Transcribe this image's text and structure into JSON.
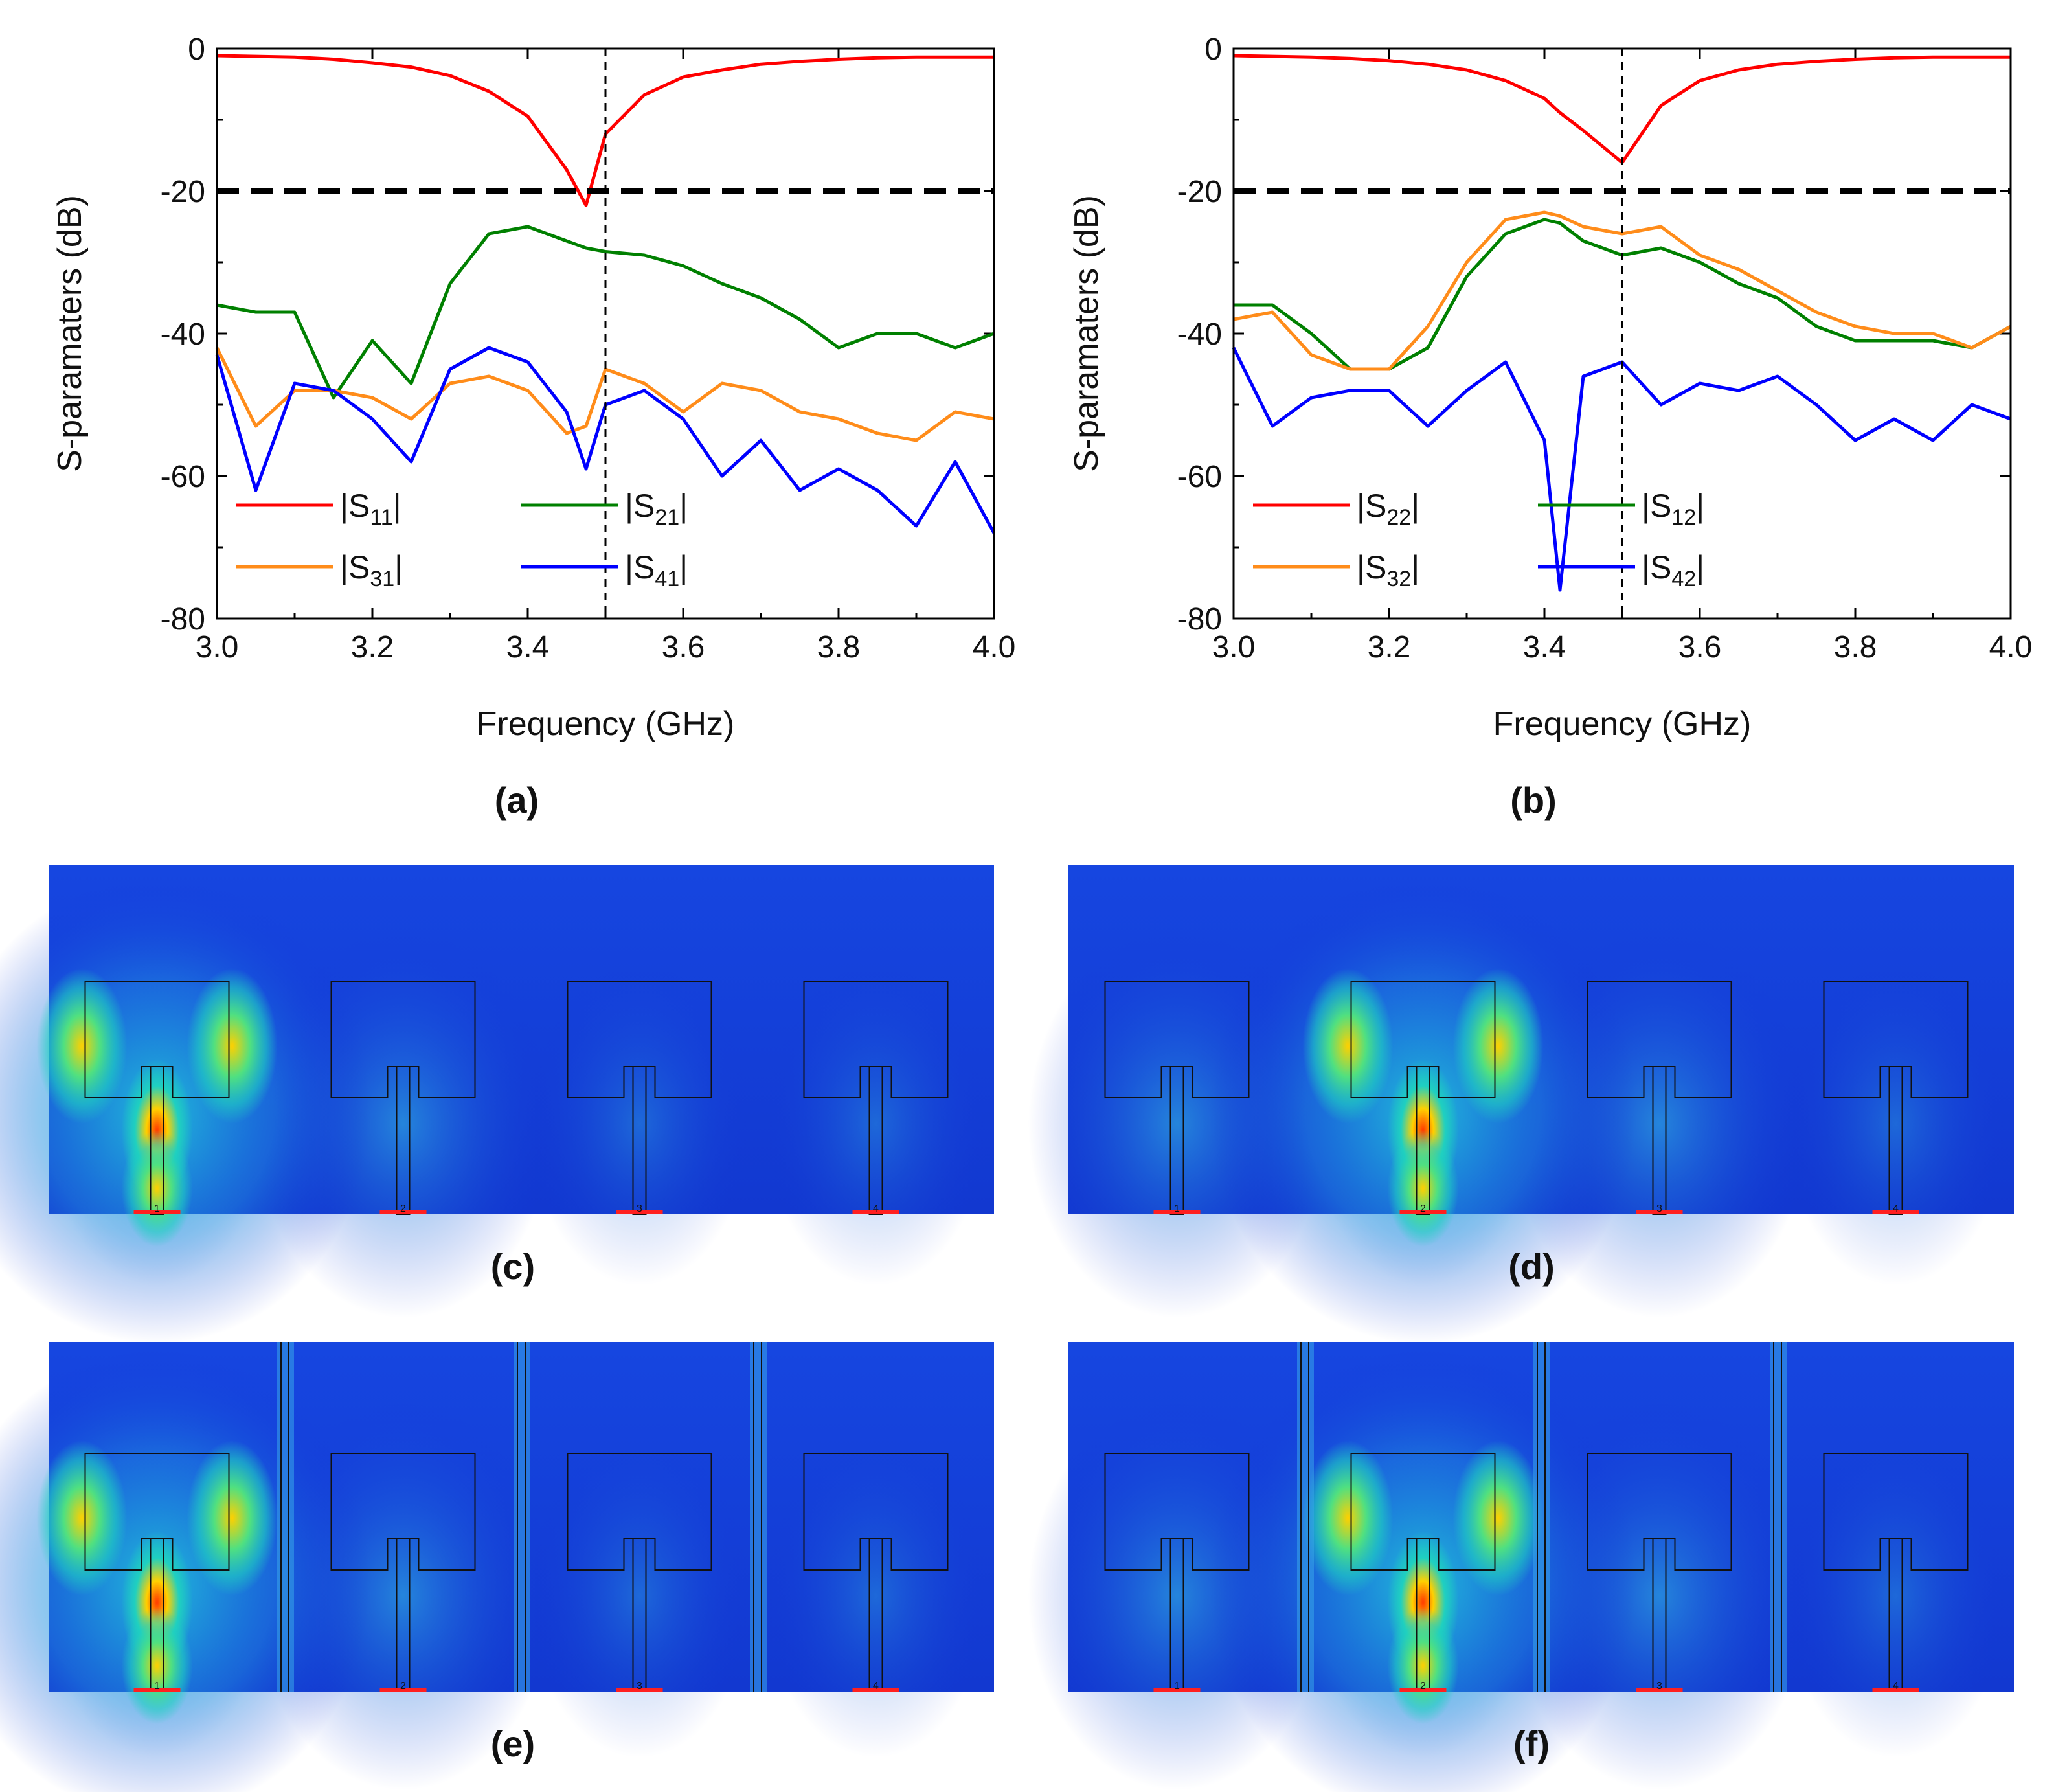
{
  "colors": {
    "s_red": "#ff0000",
    "s_green": "#008000",
    "s_orange": "#ff8c1a",
    "s_blue": "#0000ff",
    "field_bg": "#1232d8",
    "field_mid": "#1fd0c0",
    "field_hot": "#ffd000",
    "field_max": "#ff3a00",
    "port_red": "#ff2020"
  },
  "chart_data": [
    {
      "id": "a",
      "type": "line",
      "panel_label": "(a)",
      "xlabel": "Frequency (GHz)",
      "ylabel": "S-paramaters (dB)",
      "xlim": [
        3.0,
        4.0
      ],
      "ylim": [
        -80,
        0
      ],
      "xticks": [
        "3.0",
        "3.2",
        "3.4",
        "3.6",
        "3.8",
        "4.0"
      ],
      "yticks": [
        "0",
        "-20",
        "-40",
        "-60",
        "-80"
      ],
      "ref_hline_db": -20,
      "ref_vline_ghz": 3.5,
      "x": [
        3.0,
        3.05,
        3.1,
        3.15,
        3.2,
        3.25,
        3.3,
        3.35,
        3.4,
        3.45,
        3.475,
        3.5,
        3.55,
        3.6,
        3.65,
        3.7,
        3.75,
        3.8,
        3.85,
        3.9,
        3.95,
        4.0
      ],
      "legend": {
        "rows": [
          [
            {
              "series": 0,
              "text": "|S",
              "sub": "11",
              "end": "|"
            },
            {
              "series": 1,
              "text": "|S",
              "sub": "21",
              "end": "|"
            }
          ],
          [
            {
              "series": 2,
              "text": "|S",
              "sub": "31",
              "end": "|"
            },
            {
              "series": 3,
              "text": "|S",
              "sub": "41",
              "end": "|"
            }
          ]
        ]
      },
      "series": [
        {
          "name": "|S11|",
          "color": "s_red",
          "values": [
            -1,
            -1.1,
            -1.2,
            -1.5,
            -2,
            -2.6,
            -3.8,
            -6,
            -9.5,
            -17,
            -22,
            -12,
            -6.5,
            -4,
            -3,
            -2.2,
            -1.8,
            -1.5,
            -1.3,
            -1.2,
            -1.2,
            -1.2
          ]
        },
        {
          "name": "|S21|",
          "color": "s_green",
          "values": [
            -36,
            -37,
            -37,
            -49,
            -41,
            -47,
            -33,
            -26,
            -25,
            -27,
            -28,
            -28.5,
            -29,
            -30.5,
            -33,
            -35,
            -38,
            -42,
            -40,
            -40,
            -42,
            -40
          ]
        },
        {
          "name": "|S31|",
          "color": "s_orange",
          "values": [
            -42,
            -53,
            -48,
            -48,
            -49,
            -52,
            -47,
            -46,
            -48,
            -54,
            -53,
            -45,
            -47,
            -51,
            -47,
            -48,
            -51,
            -52,
            -54,
            -55,
            -51,
            -52
          ]
        },
        {
          "name": "|S41|",
          "color": "s_blue",
          "values": [
            -43,
            -62,
            -47,
            -48,
            -52,
            -58,
            -45,
            -42,
            -44,
            -51,
            -59,
            -50,
            -48,
            -52,
            -60,
            -55,
            -62,
            -59,
            -62,
            -67,
            -58,
            -68
          ]
        }
      ]
    },
    {
      "id": "b",
      "type": "line",
      "panel_label": "(b)",
      "xlabel": "Frequency (GHz)",
      "ylabel": "S-paramaters (dB)",
      "xlim": [
        3.0,
        4.0
      ],
      "ylim": [
        -80,
        0
      ],
      "xticks": [
        "3.0",
        "3.2",
        "3.4",
        "3.6",
        "3.8",
        "4.0"
      ],
      "yticks": [
        "0",
        "-20",
        "-40",
        "-60",
        "-80"
      ],
      "ref_hline_db": -20,
      "ref_vline_ghz": 3.5,
      "x": [
        3.0,
        3.05,
        3.1,
        3.15,
        3.2,
        3.25,
        3.3,
        3.35,
        3.4,
        3.42,
        3.45,
        3.5,
        3.55,
        3.6,
        3.65,
        3.7,
        3.75,
        3.8,
        3.85,
        3.9,
        3.95,
        4.0
      ],
      "legend": {
        "rows": [
          [
            {
              "series": 0,
              "text": "|S",
              "sub": "22",
              "end": "|"
            },
            {
              "series": 1,
              "text": "|S",
              "sub": "12",
              "end": "|"
            }
          ],
          [
            {
              "series": 2,
              "text": "|S",
              "sub": "32",
              "end": "|"
            },
            {
              "series": 3,
              "text": "|S",
              "sub": "42",
              "end": "|"
            }
          ]
        ]
      },
      "series": [
        {
          "name": "|S22|",
          "color": "s_red",
          "values": [
            -1,
            -1.1,
            -1.2,
            -1.4,
            -1.7,
            -2.2,
            -3,
            -4.5,
            -7,
            -9,
            -11.5,
            -16,
            -8,
            -4.5,
            -3,
            -2.2,
            -1.8,
            -1.5,
            -1.3,
            -1.2,
            -1.2,
            -1.2
          ]
        },
        {
          "name": "|S12|",
          "color": "s_green",
          "values": [
            -36,
            -36,
            -40,
            -45,
            -45,
            -42,
            -32,
            -26,
            -24,
            -24.5,
            -27,
            -29,
            -28,
            -30,
            -33,
            -35,
            -39,
            -41,
            -41,
            -41,
            -42,
            -39
          ]
        },
        {
          "name": "|S32|",
          "color": "s_orange",
          "values": [
            -38,
            -37,
            -43,
            -45,
            -45,
            -39,
            -30,
            -24,
            -23,
            -23.5,
            -25,
            -26,
            -25,
            -29,
            -31,
            -34,
            -37,
            -39,
            -40,
            -40,
            -42,
            -39
          ]
        },
        {
          "name": "|S42|",
          "color": "s_blue",
          "values": [
            -42,
            -53,
            -49,
            -48,
            -48,
            -53,
            -48,
            -44,
            -55,
            -76,
            -46,
            -44,
            -50,
            -47,
            -48,
            -46,
            -50,
            -55,
            -52,
            -55,
            -50,
            -52
          ]
        }
      ]
    }
  ],
  "field_panels": [
    {
      "id": "c",
      "label": "(c)",
      "excited_port": 1,
      "has_walls": false,
      "port_labels": [
        "1",
        "2",
        "3",
        "4"
      ]
    },
    {
      "id": "d",
      "label": "(d)",
      "excited_port": 2,
      "has_walls": false,
      "port_labels": [
        "1",
        "2",
        "3",
        "4"
      ]
    },
    {
      "id": "e",
      "label": "(e)",
      "excited_port": 1,
      "has_walls": true,
      "port_labels": [
        "1",
        "2",
        "3",
        "4"
      ]
    },
    {
      "id": "f",
      "label": "(f)",
      "excited_port": 2,
      "has_walls": true,
      "port_labels": [
        "1",
        "2",
        "3",
        "4"
      ]
    }
  ]
}
